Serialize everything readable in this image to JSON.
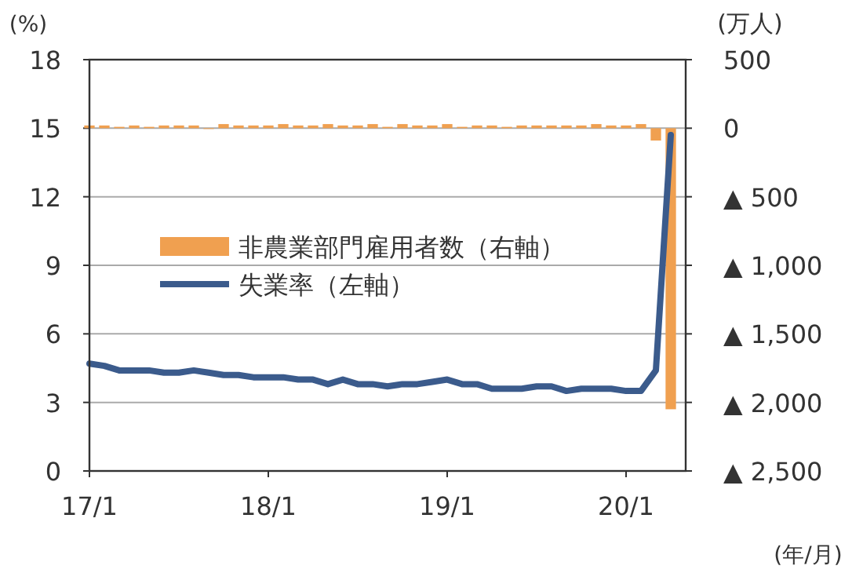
{
  "chart_data": {
    "type": "bar",
    "categories": [
      "17/1",
      null,
      null,
      null,
      null,
      null,
      null,
      null,
      null,
      null,
      null,
      null,
      "18/1",
      null,
      null,
      null,
      null,
      null,
      null,
      null,
      null,
      null,
      null,
      null,
      "19/1",
      null,
      null,
      null,
      null,
      null,
      null,
      null,
      null,
      null,
      null,
      null,
      "20/1",
      null,
      null,
      null
    ],
    "series": [
      {
        "name": "非農業部門雇用者数（右軸）",
        "axis": "y2",
        "color": "#f0a050",
        "values": [
          20,
          20,
          10,
          20,
          10,
          20,
          20,
          20,
          0,
          30,
          20,
          20,
          20,
          30,
          20,
          20,
          30,
          20,
          20,
          30,
          10,
          30,
          20,
          20,
          30,
          10,
          20,
          20,
          10,
          20,
          20,
          20,
          20,
          20,
          30,
          20,
          20,
          30,
          -90,
          -2050
        ]
      },
      {
        "name": "失業率（左軸）",
        "type": "line",
        "color": "#3b5b8c",
        "values": [
          4.7,
          4.6,
          4.4,
          4.4,
          4.4,
          4.3,
          4.3,
          4.4,
          4.3,
          4.2,
          4.2,
          4.1,
          4.1,
          4.1,
          4.0,
          4.0,
          3.8,
          4.0,
          3.8,
          3.8,
          3.7,
          3.8,
          3.8,
          3.9,
          4.0,
          3.8,
          3.8,
          3.6,
          3.6,
          3.6,
          3.7,
          3.7,
          3.5,
          3.6,
          3.6,
          3.6,
          3.5,
          3.5,
          4.4,
          14.7
        ]
      }
    ],
    "ylabel": "(%)",
    "y2label": "(万人)",
    "xlabel": "(年/月)",
    "ylim": [
      0,
      18
    ],
    "yticks": [
      0,
      3,
      6,
      9,
      12,
      15,
      18
    ],
    "y2lim": [
      -2500,
      500
    ],
    "y2ticks": [
      {
        "value": 500,
        "label": "500"
      },
      0,
      {
        "value": -500,
        "label": "▲ 500"
      },
      {
        "value": -1000,
        "label": "▲ 1,000"
      },
      {
        "value": -1500,
        "label": "▲ 1,500"
      },
      {
        "value": -2000,
        "label": "▲ 2,000"
      },
      {
        "value": -2500,
        "label": "▲ 2,500"
      }
    ],
    "grid": "y",
    "legend": "left"
  }
}
